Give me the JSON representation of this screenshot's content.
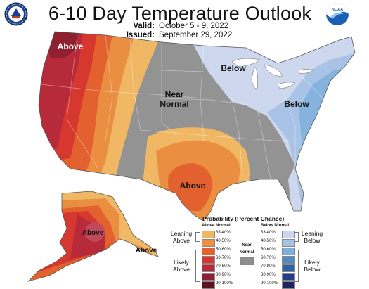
{
  "header": {
    "title": "6-10 Day Temperature Outlook",
    "valid_label": "Valid:",
    "valid_value": "October 5 - 9, 2022",
    "issued_label": "Issued:",
    "issued_value": "September 29, 2022"
  },
  "logos": {
    "left_icon": "doc-seal-icon",
    "right_icon": "noaa-logo-icon",
    "right_text": "NOAA"
  },
  "map_labels": {
    "northwest": "Above",
    "north_central_line1": "Near",
    "north_central_line2": "Normal",
    "great_lakes": "Below",
    "east": "Below",
    "texas": "Above",
    "alaska": "Above",
    "alaska_panhandle": "Above"
  },
  "legend": {
    "title": "Probability (Percent Chance)",
    "above_header": "Above Normal",
    "below_header": "Below Normal",
    "near_line1": "Near",
    "near_line2": "Normal",
    "leaning_above": [
      "Leaning",
      "Above"
    ],
    "likely_above": [
      "Likely",
      "Above"
    ],
    "leaning_below": [
      "Leaning",
      "Below"
    ],
    "likely_below": [
      "Likely",
      "Below"
    ],
    "above": [
      {
        "label": "33-40%",
        "color": "#f0b864"
      },
      {
        "label": "40-50%",
        "color": "#ea8e42"
      },
      {
        "label": "50-60%",
        "color": "#e2612e"
      },
      {
        "label": "60-70%",
        "color": "#d6372e"
      },
      {
        "label": "70-80%",
        "color": "#b72a3a"
      },
      {
        "label": "80-90%",
        "color": "#8e2030"
      },
      {
        "label": "90-100%",
        "color": "#5c1420"
      }
    ],
    "below": [
      {
        "label": "33-40%",
        "color": "#ccd6ee"
      },
      {
        "label": "40-50%",
        "color": "#a8c2e6"
      },
      {
        "label": "50-60%",
        "color": "#7fb0dd"
      },
      {
        "label": "60-70%",
        "color": "#4f8bc6"
      },
      {
        "label": "70-80%",
        "color": "#2d62a8"
      },
      {
        "label": "80-90%",
        "color": "#233e88"
      },
      {
        "label": "90-100%",
        "color": "#1d2460"
      }
    ],
    "near_color": "#8e8e8e"
  },
  "colors": {
    "near_normal": "#939393",
    "lean_above": "#f0b864",
    "above_40": "#ea8e42",
    "above_50": "#e2612e",
    "above_60": "#d6372e",
    "above_70": "#b72a3a",
    "above_80": "#8e2030",
    "lean_below": "#cdd7ee",
    "below_40": "#a9c3e7",
    "below_50": "#86b3de"
  }
}
